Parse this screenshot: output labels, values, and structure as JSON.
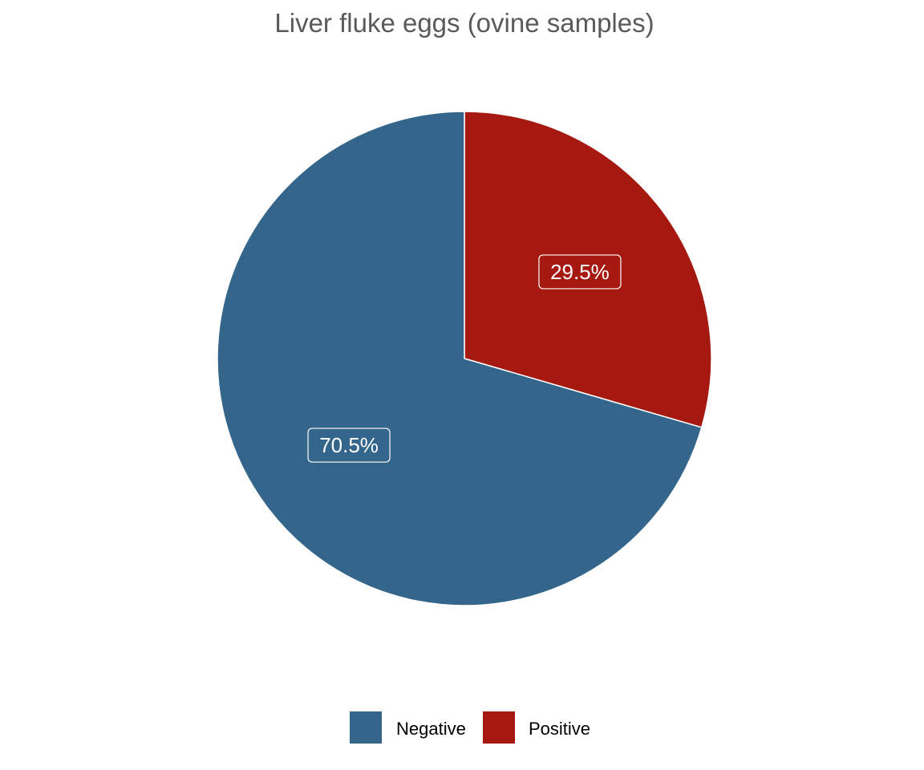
{
  "chart_data": {
    "type": "pie",
    "title": "Liver fluke eggs (ovine samples)",
    "slices": [
      {
        "name": "Positive",
        "value": 29.5,
        "label": "29.5%",
        "color": "#a51911"
      },
      {
        "name": "Negative",
        "value": 70.5,
        "label": "70.5%",
        "color": "#34658a"
      }
    ],
    "legend": {
      "position": "bottom",
      "entries": [
        {
          "name": "Negative",
          "color": "#34658a"
        },
        {
          "name": "Positive",
          "color": "#a51911"
        }
      ]
    }
  }
}
